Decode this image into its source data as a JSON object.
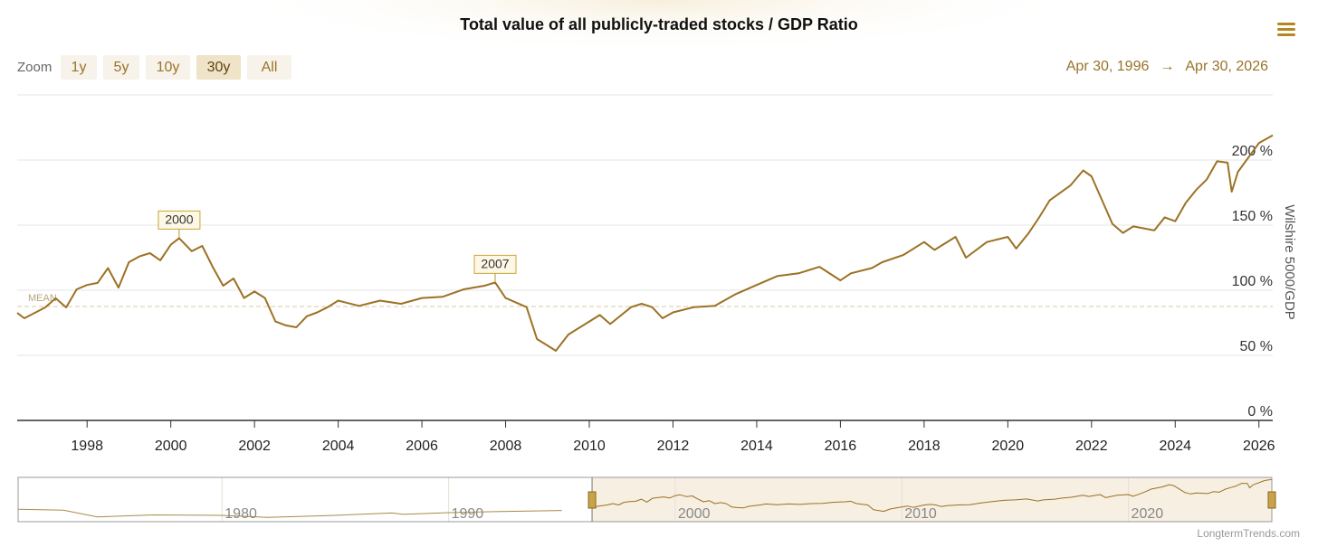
{
  "chart_data": {
    "type": "line",
    "title": "Total value of all publicly-traded stocks / GDP Ratio",
    "zoom": {
      "label": "Zoom",
      "buttons": [
        "1y",
        "5y",
        "10y",
        "30y",
        "All"
      ],
      "selected": 3
    },
    "range": {
      "from": "Apr 30, 1996",
      "arrow": "→",
      "to": "Apr 30, 2026"
    },
    "y_label": "Wilshire 5000/GDP",
    "xlim": [
      1996.33,
      2026.33
    ],
    "xticks": [
      1998,
      2000,
      2002,
      2004,
      2006,
      2008,
      2010,
      2012,
      2014,
      2016,
      2018,
      2020,
      2022,
      2024,
      2026
    ],
    "ylim": [
      0,
      250
    ],
    "yticks": [
      {
        "value": 0,
        "label": "0 %"
      },
      {
        "value": 50,
        "label": "50 %"
      },
      {
        "value": 100,
        "label": "100 %"
      },
      {
        "value": 150,
        "label": "150 %"
      },
      {
        "value": 200,
        "label": "200 %"
      }
    ],
    "grid": true,
    "mean": {
      "label": "MEAN",
      "value": 87.5
    },
    "annotations": [
      {
        "label": "2000",
        "x": 2000.2,
        "value": 140
      },
      {
        "label": "2007",
        "x": 2007.75,
        "value": 106
      }
    ],
    "series": [
      {
        "name": "Wilshire 5000/GDP",
        "color": "#9c7124",
        "x": [
          1996.33,
          1996.5,
          1997.0,
          1997.25,
          1997.5,
          1997.75,
          1998.0,
          1998.25,
          1998.5,
          1998.75,
          1999.0,
          1999.25,
          1999.5,
          1999.75,
          2000.0,
          2000.2,
          2000.5,
          2000.75,
          2001.0,
          2001.25,
          2001.5,
          2001.75,
          2002.0,
          2002.25,
          2002.5,
          2002.75,
          2003.0,
          2003.25,
          2003.5,
          2003.75,
          2004.0,
          2004.5,
          2005.0,
          2005.5,
          2006.0,
          2006.5,
          2007.0,
          2007.5,
          2007.75,
          2008.0,
          2008.5,
          2008.75,
          2009.0,
          2009.2,
          2009.5,
          2010.0,
          2010.25,
          2010.5,
          2011.0,
          2011.25,
          2011.5,
          2011.75,
          2012.0,
          2012.5,
          2013.0,
          2013.5,
          2014.0,
          2014.5,
          2015.0,
          2015.5,
          2016.0,
          2016.25,
          2016.75,
          2017.0,
          2017.5,
          2018.0,
          2018.25,
          2018.75,
          2019.0,
          2019.5,
          2020.0,
          2020.2,
          2020.5,
          2020.75,
          2021.0,
          2021.5,
          2021.8,
          2022.0,
          2022.5,
          2022.75,
          2023.0,
          2023.5,
          2023.75,
          2024.0,
          2024.25,
          2024.5,
          2024.75,
          2025.0,
          2025.25,
          2025.35,
          2025.5,
          2026.0,
          2026.33
        ],
        "values": [
          82.6,
          78.5,
          86.8,
          93.8,
          86.8,
          100.7,
          104,
          105.6,
          117,
          102,
          121.5,
          126,
          128.5,
          123,
          135,
          140,
          130,
          134,
          118,
          103.5,
          109,
          94,
          99,
          94,
          76,
          73,
          71.5,
          80,
          83,
          87,
          92,
          88,
          92,
          89.6,
          94,
          95,
          100.7,
          103.5,
          106,
          94,
          87,
          62.5,
          57.6,
          53.5,
          66,
          76,
          81,
          74,
          87,
          89.6,
          87,
          78.5,
          83,
          87,
          88,
          97,
          104,
          111,
          113,
          118,
          107.6,
          113,
          117,
          121.5,
          127,
          137,
          131,
          141,
          125,
          137,
          141,
          132,
          144,
          156,
          169,
          180.6,
          192,
          187.5,
          151,
          144,
          149,
          146,
          156,
          153,
          167,
          177,
          185,
          199,
          198,
          175.7,
          191,
          213,
          219
        ]
      }
    ],
    "navigator": {
      "xlim": [
        1971,
        2026.33
      ],
      "ylim": [
        0,
        230
      ],
      "xticks": [
        1980,
        1990,
        2000,
        2010,
        2020
      ],
      "x": [
        1971,
        1973,
        1974.5,
        1977,
        1980,
        1982,
        1985,
        1987.5,
        1988,
        1990,
        1992,
        1995
      ],
      "values": [
        65,
        60,
        25,
        35,
        33,
        22,
        33,
        45,
        38,
        47,
        52,
        58
      ]
    },
    "credit": "LongtermTrends.com"
  }
}
